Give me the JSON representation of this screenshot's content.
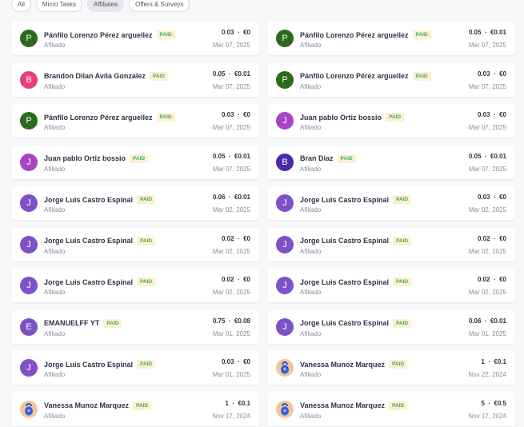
{
  "filters": [
    {
      "label": "All",
      "active": false
    },
    {
      "label": "Micro Tasks",
      "active": false
    },
    {
      "label": "Affiliates",
      "active": true
    },
    {
      "label": "Offers & Surveys",
      "active": false
    }
  ],
  "badge_label": "PAID",
  "role_label": "Afiliado",
  "colors": {
    "P": "#2c6a1e",
    "B": "#e83f78",
    "Jm": "#a845c4",
    "J": "#7e52c6",
    "Bd": "#4b2aa8",
    "E": "#7e52c6"
  },
  "items": [
    {
      "initial": "P",
      "color": "P",
      "name": "Pánfilo Lorenzo Pérez arguellez",
      "points": "0.03",
      "euro": "€0",
      "date": "Mar 07, 2025"
    },
    {
      "initial": "P",
      "color": "P",
      "name": "Pánfilo Lorenzo Pérez arguellez",
      "points": "0.05",
      "euro": "€0.01",
      "date": "Mar 07, 2025"
    },
    {
      "initial": "B",
      "color": "B",
      "name": "Brandon Dilan Avila Gonzalez",
      "points": "0.05",
      "euro": "€0.01",
      "date": "Mar 07, 2025"
    },
    {
      "initial": "P",
      "color": "P",
      "name": "Pánfilo Lorenzo Pérez arguellez",
      "points": "0.03",
      "euro": "€0",
      "date": "Mar 07, 2025"
    },
    {
      "initial": "P",
      "color": "P",
      "name": "Pánfilo Lorenzo Pérez arguellez",
      "points": "0.03",
      "euro": "€0",
      "date": "Mar 07, 2025"
    },
    {
      "initial": "J",
      "color": "Jm",
      "name": "Juan pablo Ortiz bossio",
      "points": "0.03",
      "euro": "€0",
      "date": "Mar 07, 2025"
    },
    {
      "initial": "J",
      "color": "Jm",
      "name": "Juan pablo Ortiz bossio",
      "points": "0.05",
      "euro": "€0.01",
      "date": "Mar 07, 2025"
    },
    {
      "initial": "B",
      "color": "Bd",
      "name": "Bran Diaz",
      "points": "0.05",
      "euro": "€0.01",
      "date": "Mar 07, 2025"
    },
    {
      "initial": "J",
      "color": "J",
      "name": "Jorge Luis Castro Espinal",
      "points": "0.06",
      "euro": "€0.01",
      "date": "Mar 02, 2025"
    },
    {
      "initial": "J",
      "color": "J",
      "name": "Jorge Luis Castro Espinal",
      "points": "0.03",
      "euro": "€0",
      "date": "Mar 02, 2025"
    },
    {
      "initial": "J",
      "color": "J",
      "name": "Jorge Luis Castro Espinal",
      "points": "0.02",
      "euro": "€0",
      "date": "Mar 02, 2025"
    },
    {
      "initial": "J",
      "color": "J",
      "name": "Jorge Luis Castro Espinal",
      "points": "0.02",
      "euro": "€0",
      "date": "Mar 02, 2025"
    },
    {
      "initial": "J",
      "color": "J",
      "name": "Jorge Luis Castro Espinal",
      "points": "0.02",
      "euro": "€0",
      "date": "Mar 02, 2025"
    },
    {
      "initial": "J",
      "color": "J",
      "name": "Jorge Luis Castro Espinal",
      "points": "0.02",
      "euro": "€0",
      "date": "Mar 02, 2025"
    },
    {
      "initial": "E",
      "color": "E",
      "name": "EMANUELFF YT",
      "points": "0.75",
      "euro": "€0.08",
      "date": "Mar 01, 2025"
    },
    {
      "initial": "J",
      "color": "J",
      "name": "Jorge Luis Castro Espinal",
      "points": "0.06",
      "euro": "€0.01",
      "date": "Mar 01, 2025"
    },
    {
      "initial": "J",
      "color": "J",
      "name": "Jorge Luis Castro Espinal",
      "points": "0.03",
      "euro": "€0",
      "date": "Mar 01, 2025"
    },
    {
      "initial": "",
      "color": "img",
      "name": "Vanessa Munoz Marquez",
      "points": "1",
      "euro": "€0.1",
      "date": "Nov 22, 2024"
    },
    {
      "initial": "",
      "color": "img",
      "name": "Vanessa Munoz Marquez",
      "points": "1",
      "euro": "€0.1",
      "date": "Nov 17, 2024"
    },
    {
      "initial": "",
      "color": "img",
      "name": "Vanessa Munoz Marquez",
      "points": "5",
      "euro": "€0.5",
      "date": "Nov 17, 2024"
    }
  ]
}
